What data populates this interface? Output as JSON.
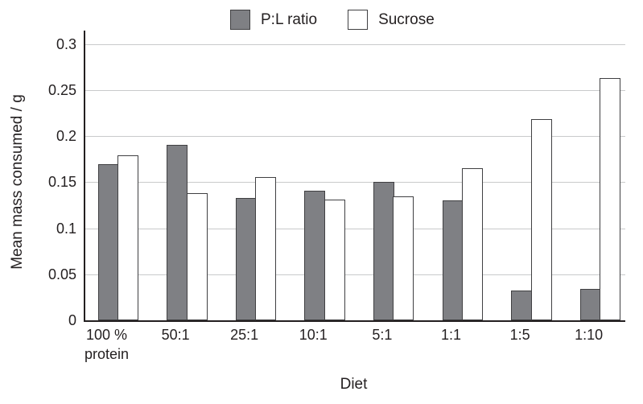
{
  "chart_data": {
    "type": "bar",
    "title": "",
    "xlabel": "Diet",
    "ylabel": "Mean mass consumed / g",
    "categories": [
      "100 %\nprotein",
      "50:1",
      "25:1",
      "10:1",
      "5:1",
      "1:1",
      "1:5",
      "1:10"
    ],
    "series": [
      {
        "name": "P:L ratio",
        "fill": "#7f8084",
        "values": [
          0.17,
          0.191,
          0.133,
          0.141,
          0.15,
          0.13,
          0.032,
          0.034
        ]
      },
      {
        "name": "Sucrose",
        "fill": "#ffffff",
        "values": [
          0.179,
          0.138,
          0.156,
          0.131,
          0.135,
          0.165,
          0.219,
          0.263
        ]
      }
    ],
    "ylim": [
      0,
      0.3
    ],
    "yticks": [
      0,
      0.05,
      0.1,
      0.15,
      0.2,
      0.25,
      0.3
    ],
    "ytick_labels": [
      "0",
      "0.05",
      "0.1",
      "0.15",
      "0.2",
      "0.25",
      "0.3"
    ],
    "grid": true,
    "legend_position": "top-center"
  },
  "colors": {
    "bar_stroke": "#404042",
    "gridline": "#c9cacb",
    "axis": "#231f20",
    "text": "#231f20",
    "series_pl_fill": "#7f8084",
    "series_sucrose_fill": "#ffffff"
  }
}
